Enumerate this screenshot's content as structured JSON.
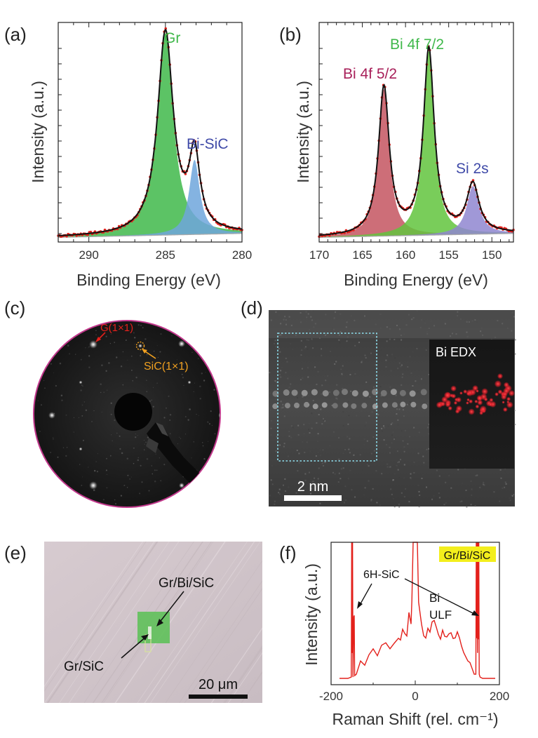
{
  "panel_labels": [
    "(a)",
    "(b)",
    "(c)",
    "(d)",
    "(e)",
    "(f)"
  ],
  "colors": {
    "data_red": "#e3201b",
    "fit_black": "#111111",
    "gr_green": "#3fb84a",
    "blue": "#6fa6dc",
    "bi_red": "#c45560",
    "bi_green": "#62c43d",
    "si_purple": "#8f86d0",
    "ring_magenta": "#c2388c",
    "edx_red": "#e21e2a",
    "leed_orange": "#f0a020",
    "highlight_yellow": "#f3ee1c"
  },
  "chart_data": [
    {
      "type": "line",
      "panel": "(a)",
      "title": "",
      "xlabel": "Binding Energy (eV)",
      "ylabel": "Intensity (a.u.)",
      "xlim": [
        292,
        280
      ],
      "ylim": [
        0,
        1
      ],
      "x_ticks": [
        290,
        285,
        280
      ],
      "grid": false,
      "background": 0.03,
      "peaks": [
        {
          "name": "Gr",
          "center": 285.0,
          "height": 0.92,
          "width": 0.62,
          "color": "#3fb84a"
        },
        {
          "name": "Bi-SiC",
          "center": 283.1,
          "height": 0.34,
          "width": 0.42,
          "color": "#6fa6dc"
        }
      ],
      "annotations": [
        {
          "text": "Gr",
          "color": "#3fb84a"
        },
        {
          "text": "Bi-SiC",
          "color": "#3f4aa8"
        }
      ]
    },
    {
      "type": "line",
      "panel": "(b)",
      "title": "",
      "xlabel": "Binding Energy (eV)",
      "ylabel": "Intensity (a.u.)",
      "xlim": [
        170,
        147.5
      ],
      "ylim": [
        0,
        1
      ],
      "x_ticks": [
        170,
        165,
        160,
        155,
        150
      ],
      "grid": false,
      "background": 0.03,
      "peaks": [
        {
          "name": "Bi 4f 5/2",
          "center": 162.5,
          "height": 0.67,
          "width": 0.75,
          "color": "#c45560"
        },
        {
          "name": "Bi 4f 7/2",
          "center": 157.3,
          "height": 0.84,
          "width": 0.75,
          "color": "#62c43d"
        },
        {
          "name": "Si 2s",
          "center": 152.2,
          "height": 0.22,
          "width": 0.85,
          "color": "#8f86d0"
        }
      ],
      "annotations": [
        {
          "text": "Bi 4f 5/2",
          "color": "#a8205a"
        },
        {
          "text": "Bi 4f 7/2",
          "color": "#3fb84a"
        },
        {
          "text": "Si 2s",
          "color": "#3f4aa8"
        }
      ]
    },
    {
      "type": "line",
      "panel": "(f)",
      "title": "",
      "xlabel": "Raman Shift (rel. cm⁻¹)",
      "ylabel": "Intensity (a.u.)",
      "xlim": [
        -200,
        200
      ],
      "ylim": [
        0,
        1
      ],
      "x_ticks": [
        -200,
        0,
        200
      ],
      "grid": false,
      "series": [
        {
          "name": "Gr/Bi/SiC",
          "x": [
            -180,
            -160,
            -152,
            -151,
            -150,
            -149,
            -148,
            -146,
            -145,
            -144,
            -140,
            -130,
            -120,
            -110,
            -100,
            -90,
            -80,
            -70,
            -60,
            -50,
            -40,
            -35,
            -30,
            -25,
            -20,
            -15,
            -10,
            -8,
            -5,
            -3,
            -1,
            1,
            3,
            5,
            8,
            12,
            15,
            20,
            25,
            30,
            35,
            40,
            45,
            50,
            55,
            60,
            65,
            70,
            75,
            80,
            85,
            90,
            95,
            100,
            105,
            110,
            115,
            120,
            125,
            130,
            140,
            144,
            145,
            146,
            147,
            148,
            149,
            150,
            151,
            152,
            154,
            160,
            175,
            190
          ],
          "y": [
            0.02,
            0.02,
            0.03,
            1.0,
            0.2,
            1.0,
            0.03,
            0.45,
            0.48,
            0.04,
            0.05,
            0.15,
            0.12,
            0.2,
            0.22,
            0.18,
            0.25,
            0.27,
            0.24,
            0.27,
            0.32,
            0.29,
            0.36,
            0.34,
            0.33,
            0.5,
            0.41,
            0.58,
            1.0,
            1.0,
            1.0,
            1.0,
            1.0,
            1.0,
            0.58,
            0.48,
            0.4,
            0.32,
            0.31,
            0.38,
            0.35,
            0.43,
            0.45,
            0.4,
            0.34,
            0.29,
            0.36,
            0.31,
            0.32,
            0.33,
            0.35,
            0.32,
            0.3,
            0.36,
            0.32,
            0.26,
            0.22,
            0.18,
            0.15,
            0.12,
            0.05,
            0.05,
            1.0,
            0.3,
            1.0,
            0.2,
            1.0,
            0.3,
            1.0,
            0.05,
            0.03,
            0.02,
            0.02,
            0.02
          ],
          "color": "#e3201b"
        }
      ],
      "annotations": [
        {
          "text": "6H-SiC"
        },
        {
          "text": "Bi"
        },
        {
          "text": "ULF"
        },
        {
          "text": "Gr/Bi/SiC"
        }
      ]
    }
  ],
  "panel_c": {
    "labels": [
      "G(1×1)",
      "SiC(1×1)"
    ]
  },
  "panel_d": {
    "inset_label": "Bi EDX",
    "scale_bar": "2 nm"
  },
  "panel_e": {
    "labels": [
      "Gr/Bi/SiC",
      "Gr/SiC"
    ],
    "scale_bar": "20 μm"
  }
}
